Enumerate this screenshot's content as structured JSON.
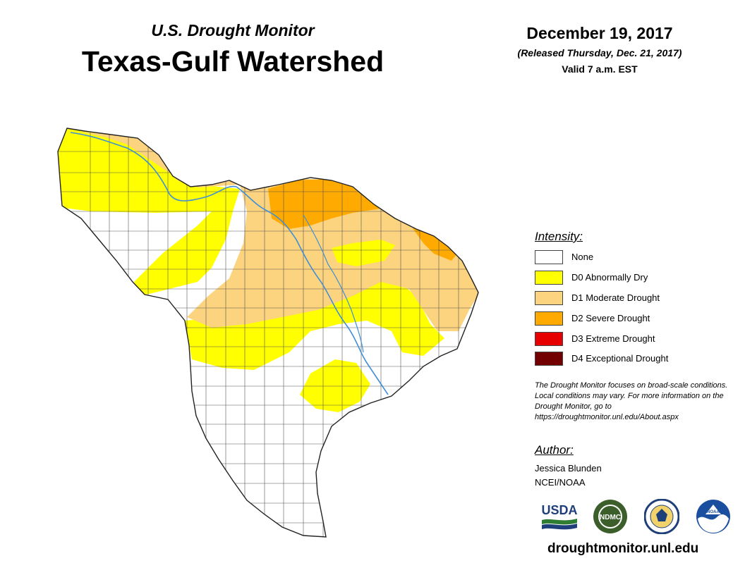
{
  "header": {
    "subtitle": "U.S. Drought Monitor",
    "title": "Texas-Gulf Watershed",
    "date": "December 19, 2017",
    "released": "(Released Thursday, Dec. 21, 2017)",
    "valid": "Valid 7 a.m. EST"
  },
  "legend": {
    "heading": "Intensity:",
    "items": [
      {
        "label": "None",
        "color": "#ffffff"
      },
      {
        "label": "D0 Abnormally Dry",
        "color": "#ffff00"
      },
      {
        "label": "D1 Moderate Drought",
        "color": "#fcd37f"
      },
      {
        "label": "D2 Severe Drought",
        "color": "#ffaa00"
      },
      {
        "label": "D3 Extreme Drought",
        "color": "#e60000"
      },
      {
        "label": "D4 Exceptional Drought",
        "color": "#730000"
      }
    ]
  },
  "disclaimer": "The Drought Monitor focuses on broad-scale conditions. Local conditions may vary. For more information on the Drought Monitor, go to https://droughtmonitor.unl.edu/About.aspx",
  "author": {
    "heading": "Author:",
    "name": "Jessica Blunden",
    "org": "NCEI/NOAA"
  },
  "logos": {
    "usda": "USDA",
    "ndmc": "NDMC",
    "noaa": "NOAA"
  },
  "website": "droughtmonitor.unl.edu",
  "colors": {
    "river": "#3f8fd8",
    "county_line": "#555555",
    "outline": "#222222"
  }
}
